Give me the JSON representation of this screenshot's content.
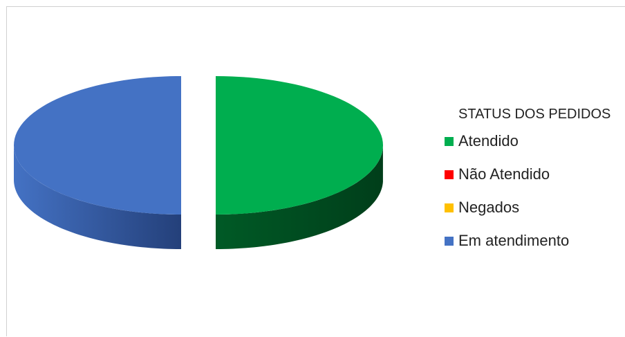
{
  "chart_data": {
    "type": "pie",
    "style": "3d-exploded",
    "legend_title": "STATUS DOS PEDIDOS",
    "legend_position": "right",
    "categories": [
      "Atendido",
      "Não Atendido",
      "Negados",
      "Em atendimento"
    ],
    "values": [
      50,
      0,
      0,
      50
    ],
    "colors": [
      "#00AE4F",
      "#FF0000",
      "#FFC000",
      "#4472C4"
    ],
    "shade_colors": [
      "#003E1A",
      "#7A0000",
      "#7A5C00",
      "#24407A"
    ]
  }
}
